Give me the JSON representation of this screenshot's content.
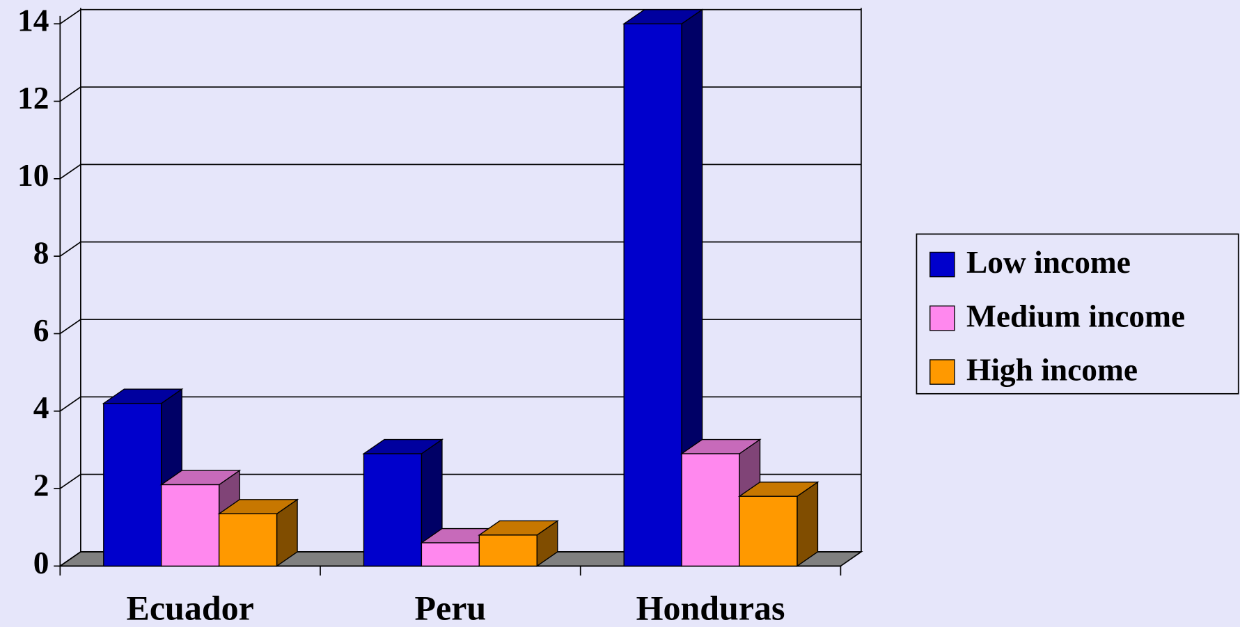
{
  "chart_data": {
    "type": "bar3d",
    "categories": [
      "Ecuador",
      "Peru",
      "Honduras"
    ],
    "series": [
      {
        "name": "Low income",
        "color": "#0000cc",
        "values": [
          4.2,
          2.9,
          14.0
        ]
      },
      {
        "name": "Medium income",
        "color": "#ff88ee",
        "values": [
          2.1,
          0.6,
          2.9
        ]
      },
      {
        "name": "High income",
        "color": "#ff9900",
        "values": [
          1.35,
          0.8,
          1.8
        ]
      }
    ],
    "ylim": [
      0,
      14
    ],
    "yticks": [
      0,
      2,
      4,
      6,
      8,
      10,
      12,
      14
    ],
    "grid": true,
    "legend": "right"
  }
}
